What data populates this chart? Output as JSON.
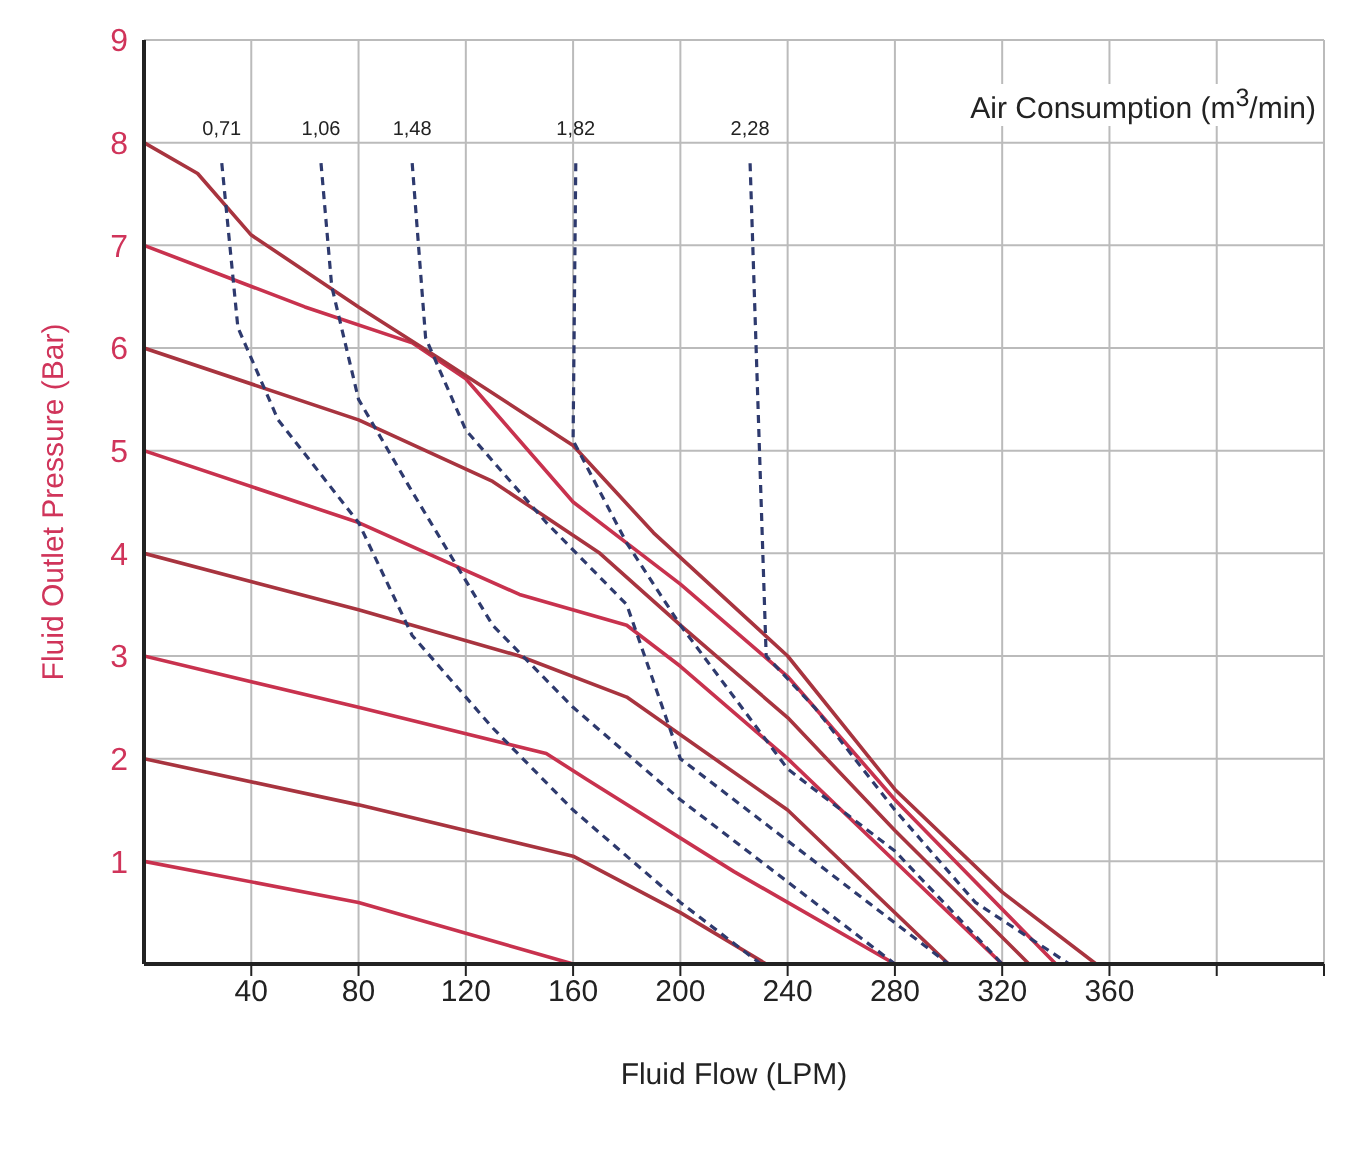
{
  "chart_data": {
    "type": "line",
    "xlabel": "Fluid Flow (LPM)",
    "ylabel": "Fluid Outlet Pressure (Bar)",
    "annotations": [
      "Air Consumption (m$^{3}$/min)"
    ],
    "xlim": [
      0,
      440
    ],
    "xticks": [
      40,
      80,
      120,
      160,
      200,
      240,
      280,
      320,
      360,
      {
        "value": 400,
        "label": null
      },
      {
        "value": 440,
        "label": null
      }
    ],
    "ylim": [
      0,
      9
    ],
    "yticks": [
      {
        "value": 0,
        "label": null
      },
      1,
      2,
      3,
      4,
      5,
      6,
      7,
      8,
      9
    ],
    "grid": true,
    "legend": false,
    "marker": "none",
    "series": [
      {
        "color": "#c8324e",
        "x": [
          0,
          80,
          160
        ],
        "values": [
          1,
          0.6,
          0
        ]
      },
      {
        "color": "#a8343f",
        "x": [
          0,
          80,
          160,
          200,
          232
        ],
        "values": [
          2,
          1.55,
          1.05,
          0.5,
          0
        ]
      },
      {
        "color": "#c8324e",
        "x": [
          0,
          80,
          150,
          165,
          220,
          280
        ],
        "values": [
          3,
          2.5,
          2.05,
          1.8,
          0.9,
          0
        ]
      },
      {
        "color": "#a8343f",
        "x": [
          0,
          80,
          140,
          180,
          240,
          300
        ],
        "values": [
          4,
          3.45,
          3,
          2.6,
          1.5,
          0
        ]
      },
      {
        "color": "#c8324e",
        "x": [
          0,
          80,
          140,
          180,
          200,
          240,
          320
        ],
        "values": [
          5,
          4.3,
          3.6,
          3.3,
          2.9,
          2,
          0
        ]
      },
      {
        "color": "#a8343f",
        "x": [
          0,
          80,
          130,
          170,
          200,
          240,
          280,
          330
        ],
        "values": [
          6,
          5.3,
          4.7,
          4,
          3.3,
          2.4,
          1.3,
          0
        ]
      },
      {
        "color": "#c8324e",
        "x": [
          0,
          60,
          100,
          120,
          160,
          200,
          240,
          280,
          340
        ],
        "values": [
          7,
          6.4,
          6.05,
          5.7,
          4.5,
          3.7,
          2.8,
          1.6,
          0
        ]
      },
      {
        "color": "#a8343f",
        "x": [
          0,
          20,
          40,
          80,
          110,
          160,
          190,
          240,
          280,
          320,
          355
        ],
        "values": [
          8,
          7.7,
          7.1,
          6.4,
          5.9,
          5.05,
          4.2,
          3,
          1.7,
          0.7,
          0
        ]
      },
      {
        "name": "0,71",
        "color": "#2e3a6e",
        "line_style": "dashed",
        "x": [
          29,
          35,
          50,
          80,
          100,
          130,
          160,
          200,
          230
        ],
        "values": [
          7.8,
          6.2,
          5.3,
          4.3,
          3.2,
          2.3,
          1.5,
          0.6,
          0
        ]
      },
      {
        "name": "1,06",
        "color": "#2e3a6e",
        "line_style": "dashed",
        "x": [
          66,
          70,
          80,
          100,
          130,
          160,
          200,
          240,
          280
        ],
        "values": [
          7.8,
          6.6,
          5.5,
          4.6,
          3.3,
          2.5,
          1.6,
          0.8,
          0
        ]
      },
      {
        "name": "1,48",
        "color": "#2e3a6e",
        "line_style": "dashed",
        "x": [
          100,
          105,
          120,
          150,
          180,
          200,
          240,
          300
        ],
        "values": [
          7.8,
          6.1,
          5.2,
          4.3,
          3.5,
          2,
          1.2,
          0
        ]
      },
      {
        "name": "1,82",
        "color": "#2e3a6e",
        "line_style": "dashed",
        "x": [
          161,
          160,
          180,
          200,
          240,
          280,
          320
        ],
        "values": [
          7.8,
          5.1,
          4.1,
          3.3,
          1.9,
          1.1,
          0
        ]
      },
      {
        "name": "2,28",
        "color": "#2e3a6e",
        "line_style": "dashed",
        "x": [
          226,
          232,
          250,
          280,
          310,
          345
        ],
        "values": [
          7.8,
          3,
          2.5,
          1.5,
          0.6,
          0
        ]
      }
    ]
  }
}
